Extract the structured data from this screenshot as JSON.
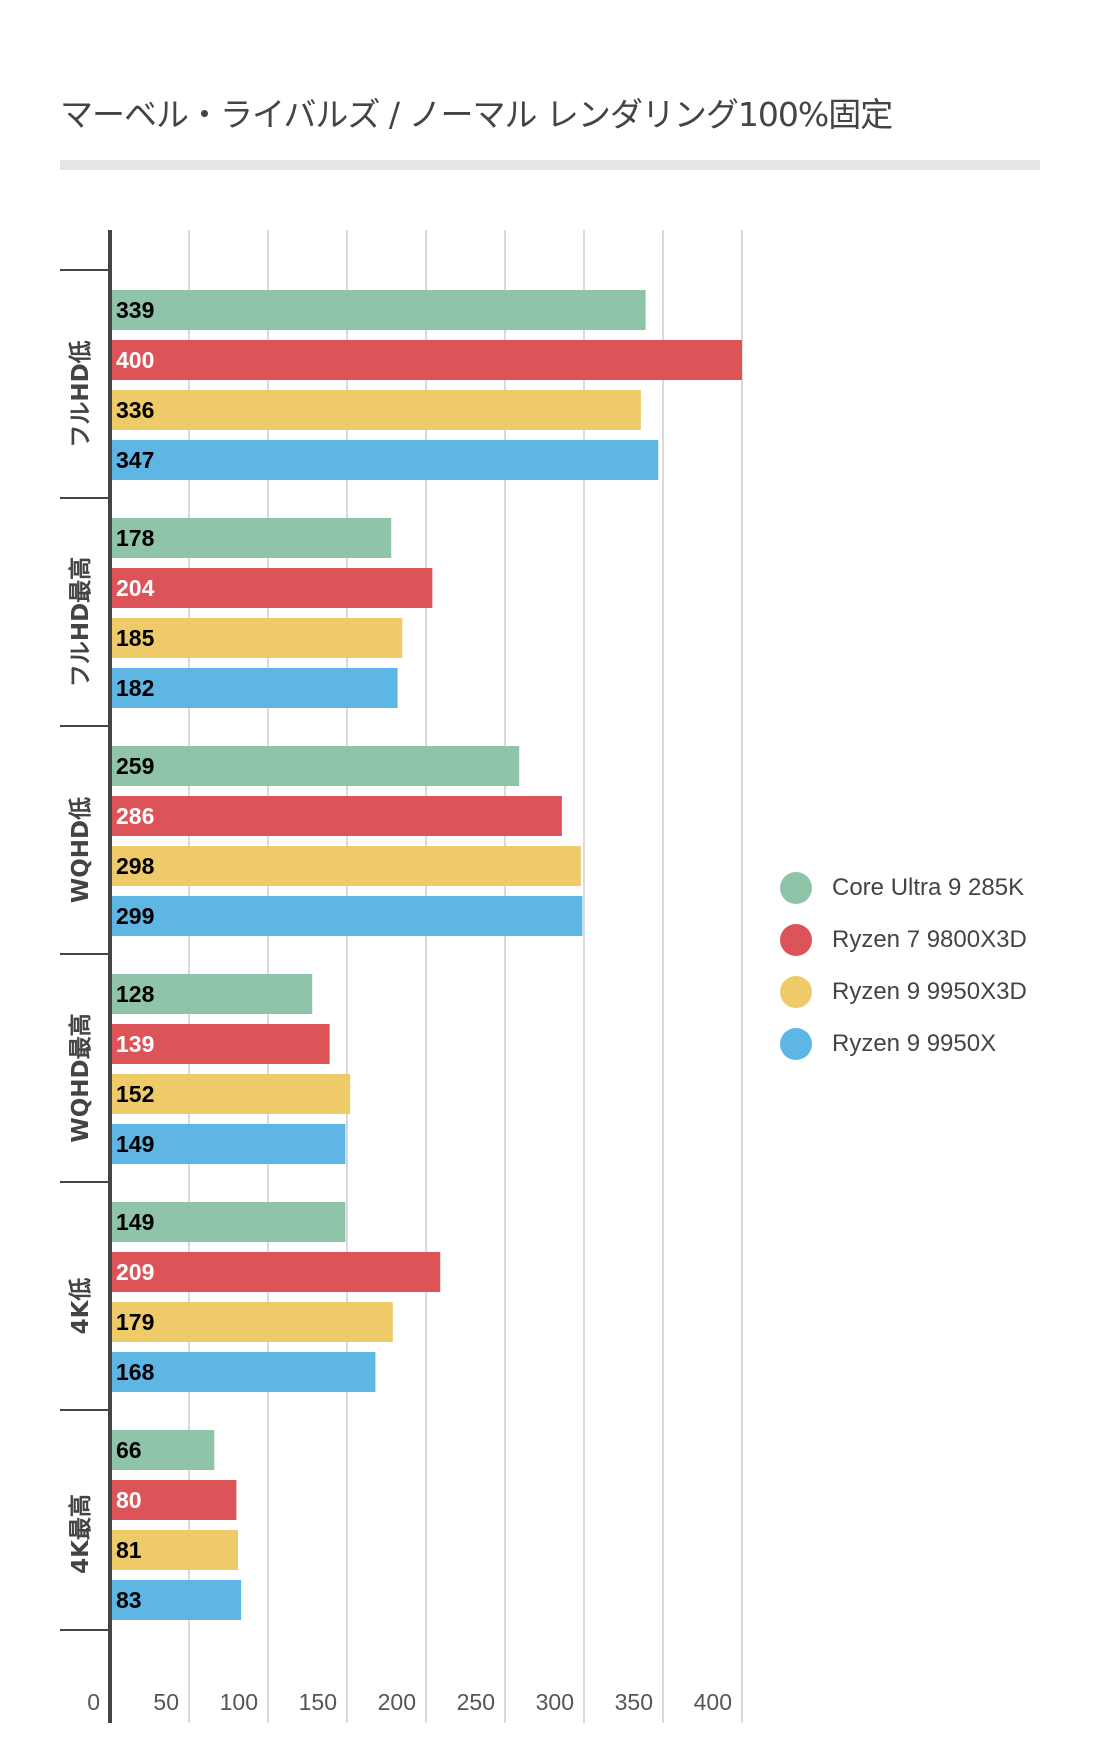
{
  "chart_data": {
    "type": "bar",
    "orientation": "horizontal",
    "title": "マーベル・ライバルズ / ノーマル レンダリング100%固定",
    "xlabel": "",
    "ylabel": "",
    "xlim": [
      0,
      400
    ],
    "xticks": [
      0,
      50,
      100,
      150,
      200,
      250,
      300,
      350,
      400
    ],
    "grid": true,
    "legend_position": "right",
    "categories": [
      "フルHD低",
      "フルHD最高",
      "WQHD低",
      "WQHD最高",
      "4K低",
      "4K最高"
    ],
    "series": [
      {
        "name": "Core Ultra 9 285K",
        "color": "#8fc4a9",
        "label_color": "#000000",
        "values": [
          339,
          178,
          259,
          128,
          149,
          66
        ]
      },
      {
        "name": "Ryzen 7 9800X3D",
        "color": "#dc5457",
        "label_color": "#ffffff",
        "values": [
          400,
          204,
          286,
          139,
          209,
          80
        ]
      },
      {
        "name": "Ryzen 9 9950X3D",
        "color": "#efca69",
        "label_color": "#000000",
        "values": [
          336,
          185,
          298,
          152,
          179,
          81
        ]
      },
      {
        "name": "Ryzen 9 9950X",
        "color": "#5eb6e4",
        "label_color": "#000000",
        "values": [
          347,
          182,
          299,
          149,
          168,
          83
        ]
      }
    ]
  }
}
